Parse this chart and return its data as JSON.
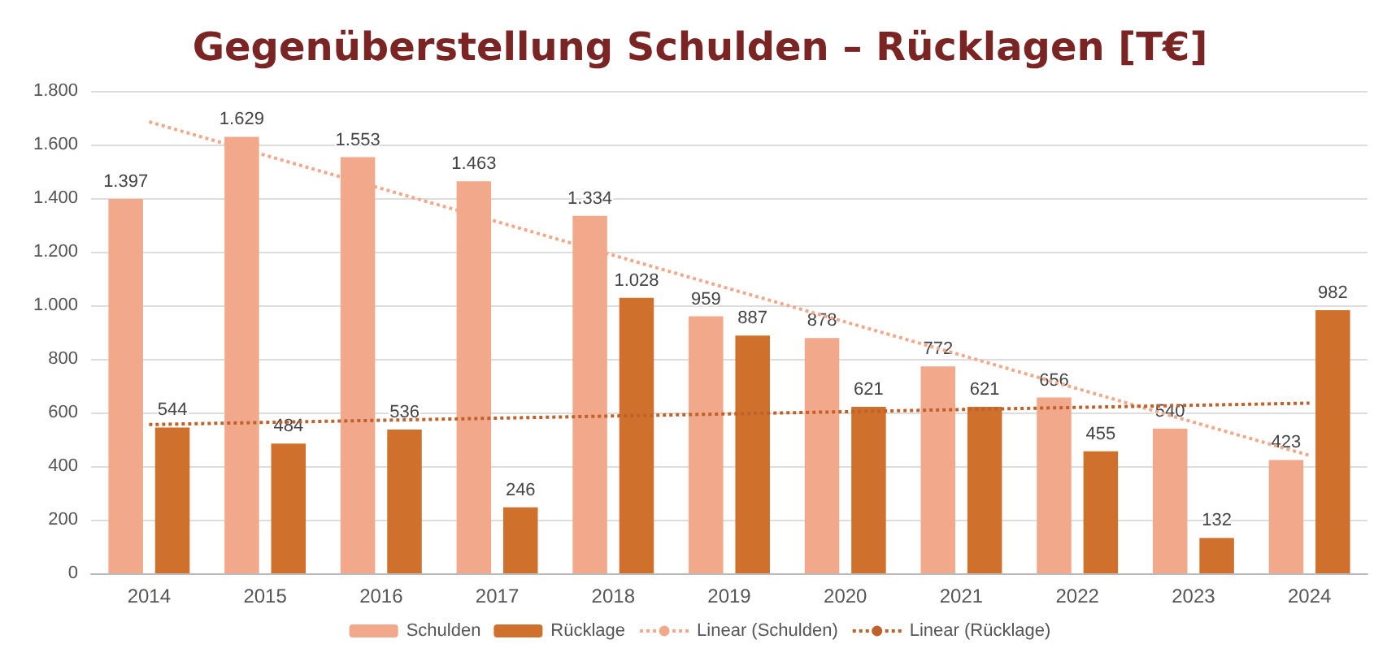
{
  "chart_data": {
    "type": "bar",
    "title": "Gegenüberstellung Schulden – Rücklagen [T€]",
    "categories": [
      "2014",
      "2015",
      "2016",
      "2017",
      "2018",
      "2019",
      "2020",
      "2021",
      "2022",
      "2023",
      "2024"
    ],
    "series": [
      {
        "name": "Schulden",
        "color": "#f2a98b",
        "values": [
          1397,
          1629,
          1553,
          1463,
          1334,
          959,
          878,
          772,
          656,
          540,
          423
        ],
        "value_labels": [
          "1.397",
          "1.629",
          "1.553",
          "1.463",
          "1.334",
          "959",
          "878",
          "772",
          "656",
          "540",
          "423"
        ]
      },
      {
        "name": "Rücklage",
        "color": "#d0702d",
        "values": [
          544,
          484,
          536,
          246,
          1028,
          887,
          621,
          621,
          455,
          132,
          982
        ],
        "value_labels": [
          "544",
          "484",
          "536",
          "246",
          "1.028",
          "887",
          "621",
          "621",
          "455",
          "132",
          "982"
        ]
      },
      {
        "name": "Linear (Schulden)",
        "type": "line",
        "color": "#f2a98b",
        "line_style": "dotted",
        "marker": "none",
        "values": [
          1685,
          1560,
          1436,
          1312,
          1187,
          1062,
          938,
          814,
          689,
          564,
          440
        ]
      },
      {
        "name": "Linear (Rücklage)",
        "type": "line",
        "color": "#c0602a",
        "line_style": "dotted",
        "marker": "none",
        "values": [
          555,
          563,
          571,
          579,
          587,
          595,
          603,
          611,
          619,
          627,
          635
        ]
      }
    ],
    "ylim": [
      0,
      1800
    ],
    "yticks": [
      0,
      200,
      400,
      600,
      800,
      {
        "value": 1000,
        "label": "1.000"
      },
      {
        "value": 1200,
        "label": "1.200"
      },
      {
        "value": 1400,
        "label": "1.400"
      },
      {
        "value": 1600,
        "label": "1.600"
      },
      {
        "value": 1800,
        "label": "1.800"
      }
    ],
    "grid": "y",
    "legend": "bottom"
  }
}
